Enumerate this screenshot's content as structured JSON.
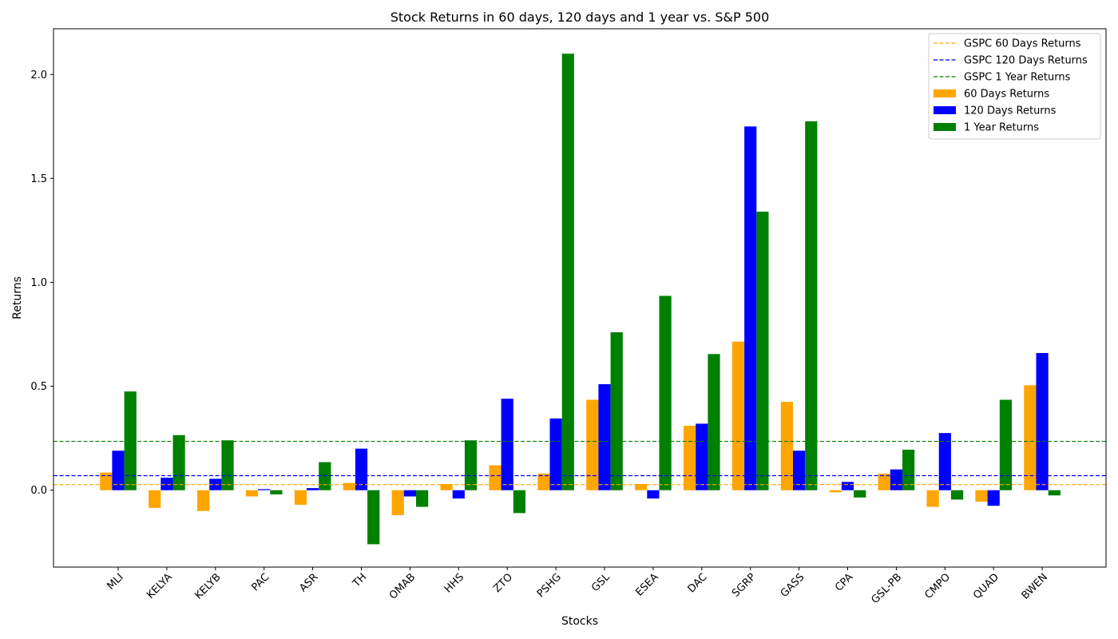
{
  "chart_data": {
    "type": "bar",
    "title": "Stock Returns in 60 days, 120 days and 1 year vs. S&P 500",
    "xlabel": "Stocks",
    "ylabel": "Returns",
    "ylim": [
      -0.37,
      2.22
    ],
    "yticks": [
      0.0,
      0.5,
      1.0,
      1.5,
      2.0
    ],
    "ytick_labels": [
      "0.0",
      "0.5",
      "1.0",
      "1.5",
      "2.0"
    ],
    "legend_position": "top-right",
    "grid": false,
    "categories": [
      "MLI",
      "KELYA",
      "KELYB",
      "PAC",
      "ASR",
      "TH",
      "OMAB",
      "HHS",
      "ZTO",
      "PSHG",
      "GSL",
      "ESEA",
      "DAC",
      "SGRP",
      "GASS",
      "CPA",
      "GSL-PB",
      "CMPO",
      "QUAD",
      "BWEN"
    ],
    "series": [
      {
        "name": "60 Days Returns",
        "color": "#ffa500",
        "values": [
          0.085,
          -0.085,
          -0.1,
          -0.03,
          -0.07,
          0.035,
          -0.12,
          0.03,
          0.12,
          0.08,
          0.435,
          0.03,
          0.31,
          0.715,
          0.425,
          -0.01,
          0.08,
          -0.08,
          -0.055,
          0.505
        ]
      },
      {
        "name": "120 Days Returns",
        "color": "#0000ff",
        "values": [
          0.19,
          0.06,
          0.055,
          0.005,
          0.01,
          0.2,
          -0.03,
          -0.04,
          0.44,
          0.345,
          0.51,
          -0.04,
          0.32,
          1.75,
          0.19,
          0.04,
          0.1,
          0.275,
          -0.075,
          0.66
        ]
      },
      {
        "name": "1 Year Returns",
        "color": "#008000",
        "values": [
          0.475,
          0.265,
          0.24,
          -0.02,
          0.135,
          -0.26,
          -0.08,
          0.24,
          -0.11,
          2.1,
          0.76,
          0.935,
          0.655,
          1.34,
          1.775,
          -0.035,
          0.195,
          -0.045,
          0.435,
          -0.025
        ]
      }
    ],
    "reference_lines": [
      {
        "name": "GSPC 60 Days Returns",
        "value": 0.027,
        "color": "#ffa500"
      },
      {
        "name": "GSPC 120 Days Returns",
        "value": 0.07,
        "color": "#0000ff"
      },
      {
        "name": "GSPC 1 Year Returns",
        "value": 0.235,
        "color": "#008000"
      }
    ]
  }
}
